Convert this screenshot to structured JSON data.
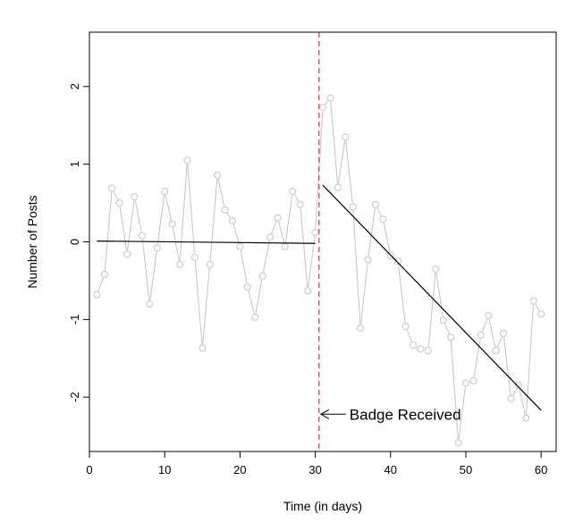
{
  "chart_data": {
    "type": "scatter",
    "title": "",
    "xlabel": "Time (in days)",
    "ylabel": "Number of Posts",
    "xlim": [
      0,
      62
    ],
    "ylim": [
      -2.7,
      2.7
    ],
    "x_ticks": [
      0,
      10,
      20,
      30,
      40,
      50,
      60
    ],
    "y_ticks": [
      -2,
      -1,
      0,
      1,
      2
    ],
    "grid": false,
    "colors": {
      "points": "#c8c8c8",
      "connector": "#c8c8c8",
      "trend": "#000000",
      "event_line": "#e03030"
    },
    "series": [
      {
        "x": [
          1,
          2,
          3,
          4,
          5,
          6,
          7,
          8,
          9,
          10,
          11,
          12,
          13,
          14,
          15,
          16,
          17,
          18,
          19,
          20,
          21,
          22,
          23,
          24,
          25,
          26,
          27,
          28,
          29,
          30,
          31,
          32,
          33,
          34,
          35,
          36,
          37,
          38,
          39,
          40,
          41,
          42,
          43,
          44,
          45,
          46,
          47,
          48,
          49,
          50,
          51,
          52,
          53,
          54,
          55,
          56,
          57,
          58,
          59,
          60
        ],
        "values": [
          -0.68,
          -0.42,
          0.69,
          0.5,
          -0.16,
          0.58,
          0.08,
          -0.8,
          -0.08,
          0.65,
          0.23,
          -0.29,
          1.05,
          -0.2,
          -1.37,
          -0.29,
          0.86,
          0.41,
          0.27,
          -0.06,
          -0.58,
          -0.97,
          -0.44,
          0.06,
          0.31,
          -0.06,
          0.65,
          0.48,
          -0.63,
          0.12,
          1.73,
          1.85,
          0.7,
          1.35,
          0.45,
          -1.11,
          -0.23,
          0.48,
          0.29,
          -0.18,
          -0.25,
          -1.09,
          -1.33,
          -1.38,
          -1.4,
          -0.35,
          -1.01,
          -1.23,
          -2.59,
          -1.82,
          -1.79,
          -1.2,
          -0.95,
          -1.4,
          -1.18,
          -2.02,
          -1.85,
          -2.27,
          -0.76,
          -0.93
        ]
      }
    ],
    "trend_lines": [
      {
        "x": [
          1,
          30
        ],
        "y": [
          0.01,
          -0.02
        ]
      },
      {
        "x": [
          31,
          60
        ],
        "y": [
          0.73,
          -2.17
        ]
      }
    ],
    "event": {
      "x": 30.5,
      "label": "Badge Received"
    }
  }
}
